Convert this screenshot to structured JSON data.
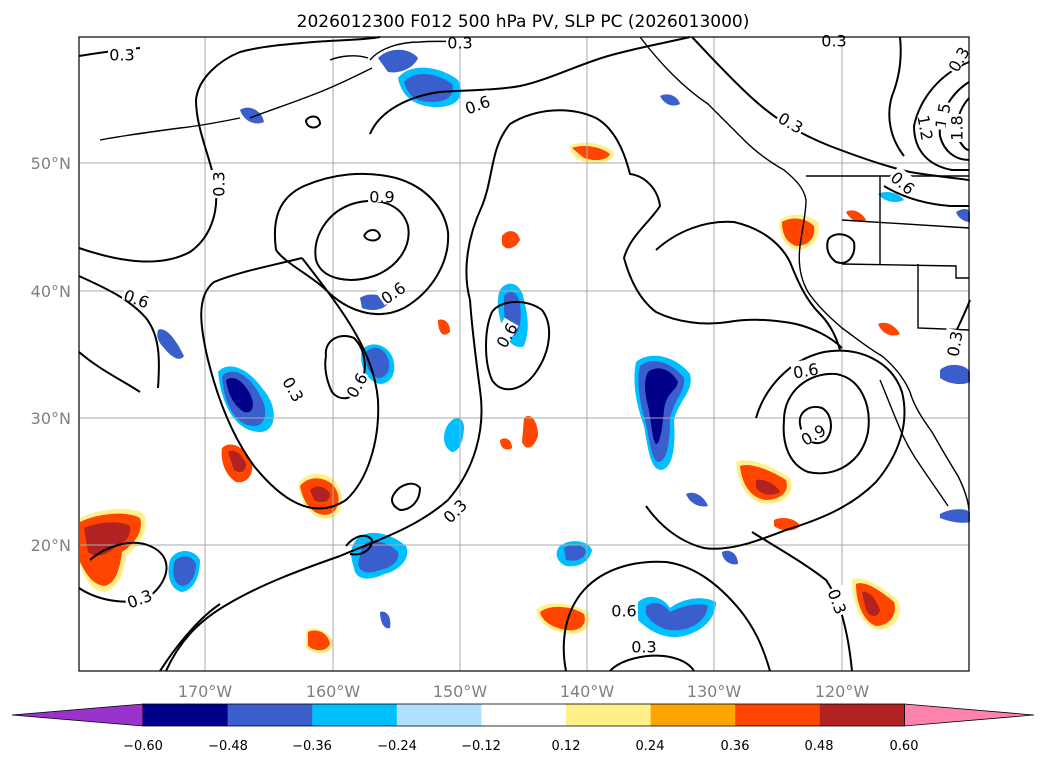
{
  "title": "2026012300 F012 500 hPa PV, SLP PC (2026013000)",
  "lat_labels": [
    "50°N",
    "40°N",
    "30°N",
    "20°N"
  ],
  "lon_labels": [
    "170°W",
    "160°W",
    "150°W",
    "140°W",
    "130°W",
    "120°W"
  ],
  "colorbar": {
    "ticks": [
      "−0.60",
      "−0.48",
      "−0.36",
      "−0.24",
      "−0.12",
      "0.12",
      "0.24",
      "0.36",
      "0.48",
      "0.60"
    ],
    "colors": [
      "#9a32cd",
      "#00008b",
      "#3a5fcd",
      "#00bfff",
      "#b0e2ff",
      "#ffffff",
      "#fff08a",
      "#ffa500",
      "#ff4500",
      "#b22222",
      "#ff82ab"
    ]
  },
  "contour_labels": [
    "0.3",
    "0.3",
    "0.3",
    "0.6",
    "0.3",
    "0.3",
    "0.9",
    "0.6",
    "0.6",
    "0.6",
    "0.3",
    "0.6",
    "0.3",
    "0.6",
    "0.9",
    "0.3",
    "0.3",
    "0.3",
    "0.6",
    "0.3",
    "1.2",
    "1.5",
    "1.8",
    "0.6",
    "0.3",
    "0.6"
  ]
}
